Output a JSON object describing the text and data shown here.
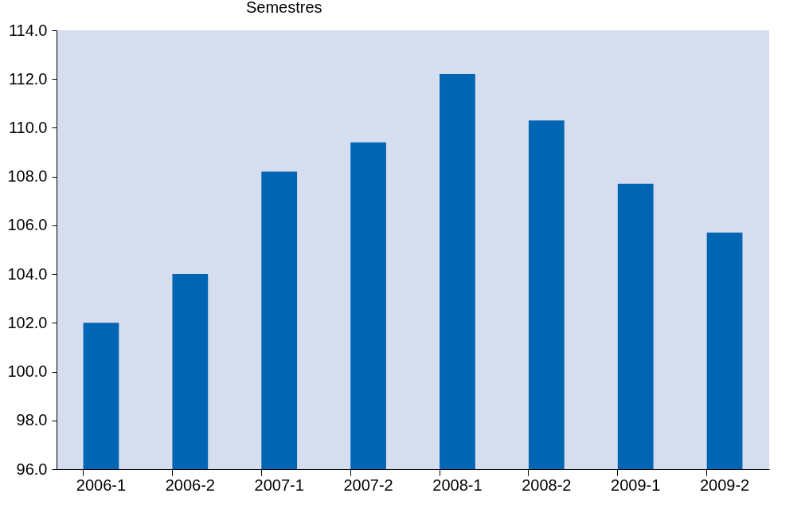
{
  "chart_data": {
    "type": "bar",
    "title": "Semestres",
    "categories": [
      "2006-1",
      "2006-2",
      "2007-1",
      "2007-2",
      "2008-1",
      "2008-2",
      "2009-1",
      "2009-2"
    ],
    "values": [
      102.0,
      104.0,
      108.2,
      109.4,
      112.2,
      110.3,
      107.7,
      105.7
    ],
    "color": "#0066b3",
    "ylim": [
      96,
      114
    ],
    "yticks": [
      {
        "value": 96,
        "label": "96.0"
      },
      {
        "value": 98,
        "label": "98.0"
      },
      {
        "value": 100,
        "label": "100.0"
      },
      {
        "value": 102,
        "label": "102.0"
      },
      {
        "value": 104,
        "label": "104.0"
      },
      {
        "value": 106,
        "label": "106.0"
      },
      {
        "value": 108,
        "label": "108.0"
      },
      {
        "value": 110,
        "label": "110.0"
      },
      {
        "value": 112,
        "label": "112.0"
      },
      {
        "value": 114,
        "label": "114.0"
      }
    ],
    "grid": false
  }
}
